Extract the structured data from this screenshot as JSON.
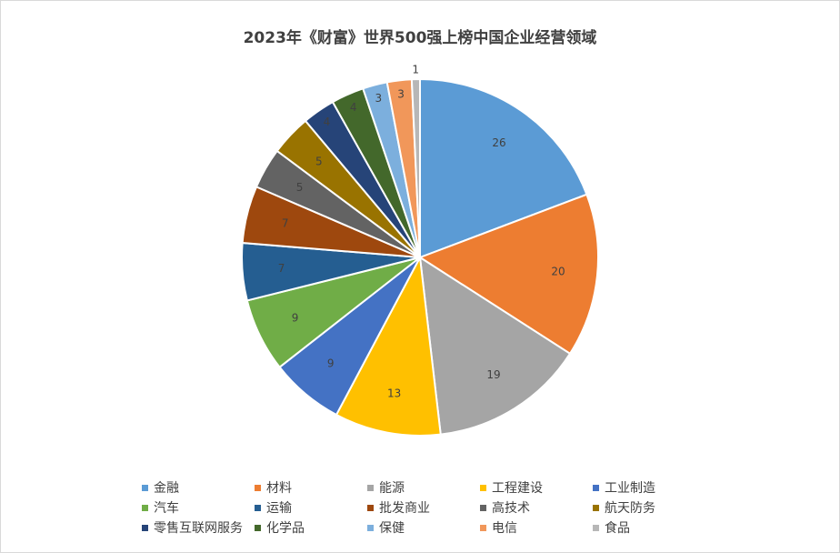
{
  "chart_data": {
    "type": "pie",
    "title": "2023年《财富》世界500强上榜中国企业经营领域",
    "categories": [
      "金融",
      "材料",
      "能源",
      "工程建设",
      "工业制造",
      "汽车",
      "运输",
      "批发商业",
      "高技术",
      "航天防务",
      "零售互联网服务",
      "化学品",
      "保健",
      "电信",
      "食品"
    ],
    "values": [
      26,
      20,
      19,
      13,
      9,
      9,
      7,
      7,
      5,
      5,
      4,
      4,
      3,
      3,
      1
    ],
    "colors": [
      "#5b9bd5",
      "#ed7d31",
      "#a5a5a5",
      "#ffc000",
      "#4472c4",
      "#70ad47",
      "#255e91",
      "#9e480e",
      "#636363",
      "#997300",
      "#264478",
      "#43682b",
      "#7cafdd",
      "#f1975a",
      "#b7b7b7"
    ],
    "legend": "bottom"
  }
}
